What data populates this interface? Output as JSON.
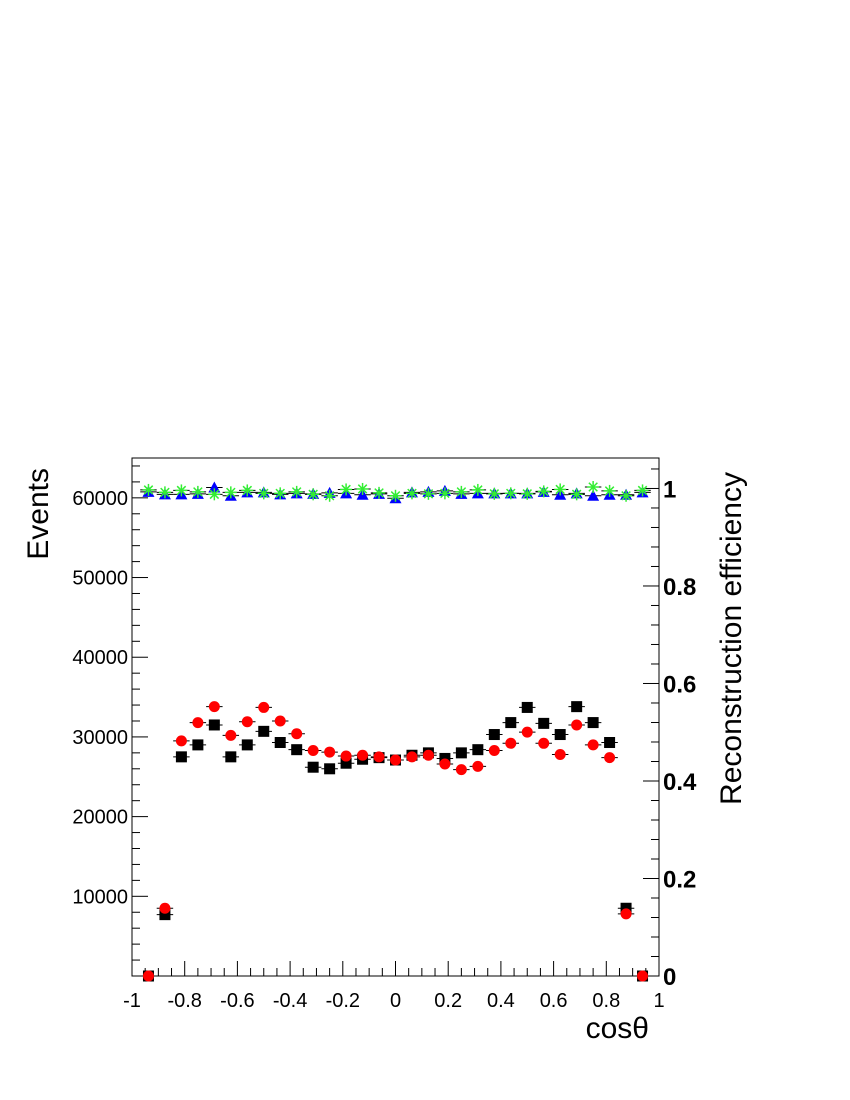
{
  "chart_data": {
    "type": "scatter",
    "xlabel": "cosθ",
    "ylabel_left": "Events",
    "ylabel_right": "Reconstruction efficiency",
    "xlim": [
      -1,
      1
    ],
    "ylim_left": [
      0,
      65000
    ],
    "ylim_right": [
      0,
      1.0625
    ],
    "x_ticks": [
      -1,
      -0.8,
      -0.6,
      -0.4,
      -0.2,
      0,
      0.2,
      0.4,
      0.6,
      0.8,
      1
    ],
    "x_tick_labels": [
      "-1",
      "-0.8",
      "-0.6",
      "-0.4",
      "-0.2",
      "0",
      "0.2",
      "0.4",
      "0.6",
      "0.8",
      "1"
    ],
    "y_left_ticks": [
      10000,
      20000,
      30000,
      40000,
      50000,
      60000
    ],
    "y_left_tick_labels": [
      "10000",
      "20000",
      "30000",
      "40000",
      "50000",
      "60000"
    ],
    "y_right_ticks": [
      0,
      0.2,
      0.4,
      0.6,
      0.8,
      1
    ],
    "y_right_tick_labels": [
      "0",
      "0.2",
      "0.4",
      "0.6",
      "0.8",
      "1"
    ],
    "grid": false,
    "x": [
      -0.9375,
      -0.875,
      -0.8125,
      -0.75,
      -0.6875,
      -0.625,
      -0.5625,
      -0.5,
      -0.4375,
      -0.375,
      -0.3125,
      -0.25,
      -0.1875,
      -0.125,
      -0.0625,
      0,
      0.0625,
      0.125,
      0.1875,
      0.25,
      0.3125,
      0.375,
      0.4375,
      0.5,
      0.5625,
      0.625,
      0.6875,
      0.75,
      0.8125,
      0.875,
      0.9375
    ],
    "series": [
      {
        "axis": "left",
        "marker": "square",
        "color": "#000000",
        "values": [
          0,
          7700,
          27500,
          29000,
          31500,
          27500,
          29000,
          30700,
          29300,
          28400,
          26200,
          26000,
          26700,
          27200,
          27400,
          27100,
          27700,
          28000,
          27300,
          28000,
          28400,
          30300,
          31800,
          33700,
          31700,
          30300,
          33800,
          31800,
          29300,
          8500,
          0
        ]
      },
      {
        "axis": "left",
        "marker": "circle",
        "color": "#ff0000",
        "values": [
          0,
          8500,
          29500,
          31800,
          33800,
          30200,
          31900,
          33700,
          32000,
          30400,
          28300,
          28100,
          27600,
          27700,
          27500,
          27100,
          27500,
          27700,
          26600,
          25900,
          26300,
          28300,
          29200,
          30600,
          29200,
          27800,
          31500,
          29000,
          27400,
          7800,
          0
        ]
      },
      {
        "axis": "right",
        "marker": "triangle",
        "color": "#0000ff",
        "values": [
          0.993,
          0.988,
          0.988,
          0.989,
          1.002,
          0.985,
          0.992,
          0.992,
          0.988,
          0.99,
          0.989,
          0.991,
          0.99,
          0.987,
          0.989,
          0.98,
          0.992,
          0.993,
          0.995,
          0.989,
          0.99,
          0.99,
          0.99,
          0.99,
          0.993,
          0.987,
          0.99,
          0.985,
          0.987,
          0.987,
          0.992
        ]
      },
      {
        "axis": "right",
        "marker": "star",
        "color": "#33ee33",
        "values": [
          0.997,
          0.992,
          0.996,
          0.993,
          0.988,
          0.992,
          0.996,
          0.99,
          0.99,
          0.993,
          0.988,
          0.985,
          0.998,
          0.999,
          0.991,
          0.985,
          0.99,
          0.989,
          0.99,
          0.993,
          0.997,
          0.989,
          0.99,
          0.989,
          0.994,
          0.998,
          0.988,
          1.003,
          0.995,
          0.985,
          0.996
        ]
      }
    ]
  }
}
